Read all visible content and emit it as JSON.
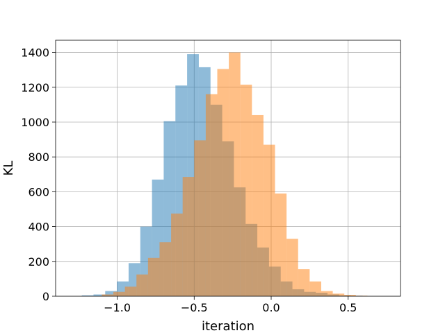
{
  "chart_data": {
    "type": "bar",
    "subtype": "overlapping-histogram",
    "title": "",
    "xlabel": "iteration",
    "ylabel": "KL",
    "xlim": [
      -1.4,
      0.84
    ],
    "ylim": [
      0,
      1470
    ],
    "xticks": [
      -1.0,
      -0.5,
      0.0,
      0.5
    ],
    "xtick_labels": [
      "−1.0",
      "−0.5",
      "0.0",
      "0.5"
    ],
    "yticks": [
      0,
      200,
      400,
      600,
      800,
      1000,
      1200,
      1400
    ],
    "ytick_labels": [
      "0",
      "200",
      "400",
      "600",
      "800",
      "1000",
      "1200",
      "1400"
    ],
    "grid": true,
    "legend": "none",
    "alpha": 0.5,
    "series": [
      {
        "color": "#1f77b4",
        "bins": [
          {
            "x0": -1.23,
            "x1": -1.154,
            "count": 5
          },
          {
            "x0": -1.154,
            "x1": -1.078,
            "count": 10
          },
          {
            "x0": -1.078,
            "x1": -1.002,
            "count": 30
          },
          {
            "x0": -1.002,
            "x1": -0.926,
            "count": 85
          },
          {
            "x0": -0.926,
            "x1": -0.85,
            "count": 190
          },
          {
            "x0": -0.85,
            "x1": -0.774,
            "count": 400
          },
          {
            "x0": -0.774,
            "x1": -0.698,
            "count": 670
          },
          {
            "x0": -0.698,
            "x1": -0.622,
            "count": 1005
          },
          {
            "x0": -0.622,
            "x1": -0.546,
            "count": 1210
          },
          {
            "x0": -0.546,
            "x1": -0.47,
            "count": 1390
          },
          {
            "x0": -0.47,
            "x1": -0.394,
            "count": 1315
          },
          {
            "x0": -0.394,
            "x1": -0.318,
            "count": 1100
          },
          {
            "x0": -0.318,
            "x1": -0.242,
            "count": 890
          },
          {
            "x0": -0.242,
            "x1": -0.166,
            "count": 625
          },
          {
            "x0": -0.166,
            "x1": -0.09,
            "count": 415
          },
          {
            "x0": -0.09,
            "x1": -0.014,
            "count": 280
          },
          {
            "x0": -0.014,
            "x1": 0.062,
            "count": 170
          },
          {
            "x0": 0.062,
            "x1": 0.138,
            "count": 85
          },
          {
            "x0": 0.138,
            "x1": 0.214,
            "count": 40
          },
          {
            "x0": 0.214,
            "x1": 0.29,
            "count": 25
          },
          {
            "x0": 0.29,
            "x1": 0.366,
            "count": 20
          },
          {
            "x0": 0.366,
            "x1": 0.442,
            "count": 10
          },
          {
            "x0": 0.442,
            "x1": 0.518,
            "count": 5
          },
          {
            "x0": 0.518,
            "x1": 0.594,
            "count": 3
          }
        ]
      },
      {
        "color": "#ff7f0e",
        "bins": [
          {
            "x0": -1.1,
            "x1": -1.025,
            "count": 10
          },
          {
            "x0": -1.025,
            "x1": -0.95,
            "count": 25
          },
          {
            "x0": -0.95,
            "x1": -0.875,
            "count": 55
          },
          {
            "x0": -0.875,
            "x1": -0.8,
            "count": 125
          },
          {
            "x0": -0.8,
            "x1": -0.725,
            "count": 220
          },
          {
            "x0": -0.725,
            "x1": -0.65,
            "count": 310
          },
          {
            "x0": -0.65,
            "x1": -0.575,
            "count": 475
          },
          {
            "x0": -0.575,
            "x1": -0.5,
            "count": 685
          },
          {
            "x0": -0.5,
            "x1": -0.425,
            "count": 895
          },
          {
            "x0": -0.425,
            "x1": -0.35,
            "count": 1160
          },
          {
            "x0": -0.35,
            "x1": -0.275,
            "count": 1305
          },
          {
            "x0": -0.275,
            "x1": -0.2,
            "count": 1400
          },
          {
            "x0": -0.2,
            "x1": -0.125,
            "count": 1215
          },
          {
            "x0": -0.125,
            "x1": -0.05,
            "count": 1040
          },
          {
            "x0": -0.05,
            "x1": 0.025,
            "count": 870
          },
          {
            "x0": 0.025,
            "x1": 0.1,
            "count": 590
          },
          {
            "x0": 0.1,
            "x1": 0.175,
            "count": 330
          },
          {
            "x0": 0.175,
            "x1": 0.25,
            "count": 155
          },
          {
            "x0": 0.25,
            "x1": 0.325,
            "count": 85
          },
          {
            "x0": 0.325,
            "x1": 0.4,
            "count": 30
          },
          {
            "x0": 0.4,
            "x1": 0.475,
            "count": 15
          },
          {
            "x0": 0.475,
            "x1": 0.55,
            "count": 8
          },
          {
            "x0": 0.55,
            "x1": 0.625,
            "count": 3
          }
        ]
      }
    ]
  }
}
